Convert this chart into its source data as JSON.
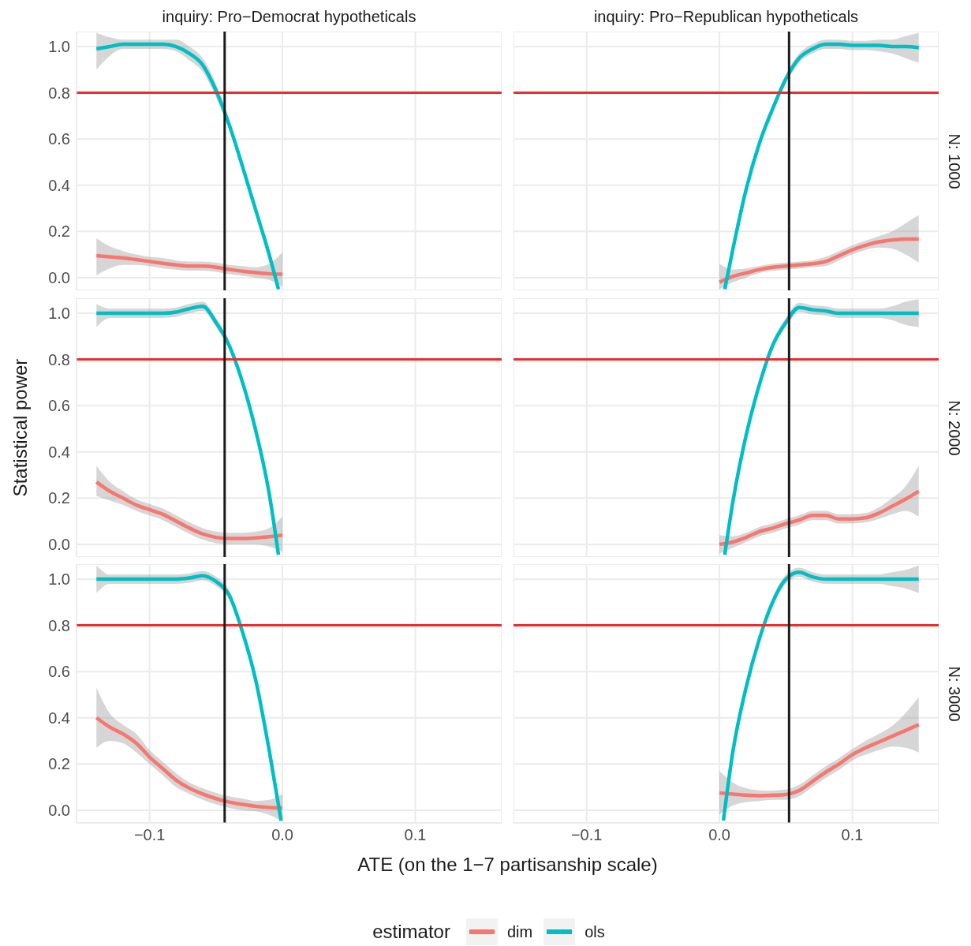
{
  "chart_data": [
    {
      "type": "line",
      "title": "inquiry: Pro−Democrat hypotheticals",
      "x": [
        -0.14,
        -0.13,
        -0.12,
        -0.11,
        -0.1,
        -0.09,
        -0.08,
        -0.07,
        -0.06,
        -0.05,
        -0.04,
        -0.03,
        -0.02,
        -0.01,
        0.0
      ],
      "xlim": [
        -0.155,
        0.165
      ],
      "ylim": [
        -0.055,
        1.065
      ],
      "xticks": [
        {
          "value": -0.1,
          "label": null
        },
        {
          "value": 0,
          "label": null
        },
        {
          "value": 0.1,
          "label": null
        }
      ],
      "yticks": [
        {
          "value": 0,
          "label": "0.0"
        },
        {
          "value": 0.2,
          "label": "0.2"
        },
        {
          "value": 0.4,
          "label": "0.4"
        },
        {
          "value": 0.6,
          "label": "0.6"
        },
        {
          "value": 0.8,
          "label": "0.8"
        },
        {
          "value": 1,
          "label": "1.0"
        }
      ],
      "grid": true,
      "tick_labels": "y",
      "ref_lines": [
        {
          "axis": "y",
          "value": 0.8,
          "color": "#ee2c2c"
        },
        {
          "axis": "x",
          "value": -0.0435,
          "color": "#1a1a1a"
        }
      ],
      "series": [
        {
          "color": "#f8766d",
          "values": [
            0.095,
            0.09,
            0.085,
            0.078,
            0.07,
            0.062,
            0.055,
            0.05,
            0.05,
            0.045,
            0.035,
            0.028,
            0.022,
            0.017,
            0.015
          ],
          "lower": [
            0.01,
            0.04,
            0.055,
            0.055,
            0.05,
            0.04,
            0.035,
            0.03,
            0.03,
            0.025,
            0.015,
            0.008,
            0.0,
            -0.01,
            -0.04
          ],
          "upper": [
            0.17,
            0.135,
            0.115,
            0.1,
            0.09,
            0.085,
            0.075,
            0.07,
            0.07,
            0.065,
            0.055,
            0.05,
            0.045,
            0.06,
            0.11
          ]
        },
        {
          "color": "#00bfc4",
          "x": [
            -0.14,
            -0.13,
            -0.12,
            -0.11,
            -0.1,
            -0.09,
            -0.08,
            -0.07,
            -0.06,
            -0.05,
            -0.04,
            -0.03,
            -0.02,
            -0.01,
            -0.003
          ],
          "values": [
            0.99,
            1.0,
            1.01,
            1.01,
            1.01,
            1.01,
            1.0,
            0.97,
            0.92,
            0.81,
            0.66,
            0.48,
            0.29,
            0.1,
            -0.05
          ],
          "lower": [
            0.9,
            0.96,
            0.99,
            0.99,
            0.99,
            0.99,
            0.98,
            0.94,
            0.89,
            0.78,
            0.64,
            0.46,
            0.27,
            0.08,
            -0.05
          ],
          "upper": [
            1.06,
            1.04,
            1.03,
            1.03,
            1.03,
            1.03,
            1.03,
            1.0,
            0.95,
            0.84,
            0.68,
            0.5,
            0.31,
            0.12,
            -0.05
          ]
        }
      ]
    },
    {
      "type": "line",
      "title": "inquiry: Pro−Republican hypotheticals",
      "y2label": "N: 1000",
      "x": [
        0.0,
        0.01,
        0.02,
        0.03,
        0.04,
        0.05,
        0.06,
        0.07,
        0.08,
        0.09,
        0.1,
        0.11,
        0.12,
        0.13,
        0.14,
        0.15
      ],
      "xlim": [
        -0.155,
        0.165
      ],
      "ylim": [
        -0.055,
        1.065
      ],
      "xticks": [
        {
          "value": -0.1,
          "label": null
        },
        {
          "value": 0,
          "label": null
        },
        {
          "value": 0.1,
          "label": null
        }
      ],
      "yticks": [
        {
          "value": 0,
          "label": null
        },
        {
          "value": 0.2,
          "label": null
        },
        {
          "value": 0.4,
          "label": null
        },
        {
          "value": 0.6,
          "label": null
        },
        {
          "value": 0.8,
          "label": null
        },
        {
          "value": 1,
          "label": null
        }
      ],
      "grid": true,
      "tick_labels": false,
      "ref_lines": [
        {
          "axis": "y",
          "value": 0.8,
          "color": "#ee2c2c"
        },
        {
          "axis": "x",
          "value": 0.0524,
          "color": "#1a1a1a"
        }
      ],
      "series": [
        {
          "color": "#f8766d",
          "values": [
            -0.02,
            0.005,
            0.02,
            0.035,
            0.045,
            0.05,
            0.055,
            0.06,
            0.07,
            0.095,
            0.12,
            0.14,
            0.155,
            0.163,
            0.167,
            0.167
          ],
          "lower": [
            -0.05,
            -0.02,
            0.0,
            0.02,
            0.03,
            0.035,
            0.04,
            0.045,
            0.05,
            0.075,
            0.1,
            0.12,
            0.13,
            0.125,
            0.1,
            0.065
          ],
          "upper": [
            0.06,
            0.035,
            0.04,
            0.05,
            0.06,
            0.065,
            0.07,
            0.075,
            0.09,
            0.115,
            0.14,
            0.16,
            0.18,
            0.2,
            0.235,
            0.27
          ]
        },
        {
          "color": "#00bfc4",
          "x": [
            0.004,
            0.01,
            0.02,
            0.03,
            0.04,
            0.05,
            0.06,
            0.07,
            0.08,
            0.09,
            0.1,
            0.11,
            0.12,
            0.13,
            0.14,
            0.15
          ],
          "values": [
            -0.05,
            0.12,
            0.38,
            0.58,
            0.73,
            0.86,
            0.95,
            0.99,
            1.01,
            1.01,
            1.005,
            1.005,
            1.005,
            1.0,
            1.0,
            0.995
          ],
          "lower": [
            -0.05,
            0.1,
            0.36,
            0.56,
            0.71,
            0.84,
            0.93,
            0.97,
            0.99,
            0.99,
            0.985,
            0.985,
            0.98,
            0.97,
            0.95,
            0.93
          ],
          "upper": [
            -0.05,
            0.14,
            0.4,
            0.6,
            0.75,
            0.88,
            0.97,
            1.01,
            1.03,
            1.03,
            1.025,
            1.025,
            1.03,
            1.03,
            1.045,
            1.06
          ]
        }
      ]
    },
    {
      "type": "line",
      "ylabel": "Statistical power",
      "x": [
        -0.14,
        -0.13,
        -0.12,
        -0.11,
        -0.1,
        -0.09,
        -0.08,
        -0.07,
        -0.06,
        -0.05,
        -0.04,
        -0.03,
        -0.02,
        -0.01,
        0.0
      ],
      "xlim": [
        -0.155,
        0.165
      ],
      "ylim": [
        -0.055,
        1.065
      ],
      "xticks": [
        {
          "value": -0.1,
          "label": null
        },
        {
          "value": 0,
          "label": null
        },
        {
          "value": 0.1,
          "label": null
        }
      ],
      "yticks": [
        {
          "value": 0,
          "label": "0.0"
        },
        {
          "value": 0.2,
          "label": "0.2"
        },
        {
          "value": 0.4,
          "label": "0.4"
        },
        {
          "value": 0.6,
          "label": "0.6"
        },
        {
          "value": 0.8,
          "label": "0.8"
        },
        {
          "value": 1,
          "label": "1.0"
        }
      ],
      "grid": true,
      "tick_labels": "y",
      "ref_lines": [
        {
          "axis": "y",
          "value": 0.8,
          "color": "#ee2c2c"
        },
        {
          "axis": "x",
          "value": -0.0435,
          "color": "#1a1a1a"
        }
      ],
      "series": [
        {
          "color": "#f8766d",
          "values": [
            0.27,
            0.23,
            0.2,
            0.17,
            0.15,
            0.13,
            0.1,
            0.07,
            0.045,
            0.03,
            0.025,
            0.025,
            0.028,
            0.033,
            0.04
          ],
          "lower": [
            0.21,
            0.19,
            0.17,
            0.145,
            0.125,
            0.105,
            0.075,
            0.045,
            0.02,
            0.005,
            0.0,
            0.0,
            0.0,
            -0.01,
            -0.03
          ],
          "upper": [
            0.34,
            0.27,
            0.23,
            0.195,
            0.175,
            0.155,
            0.125,
            0.095,
            0.07,
            0.055,
            0.05,
            0.05,
            0.055,
            0.07,
            0.12
          ]
        },
        {
          "color": "#00bfc4",
          "x": [
            -0.14,
            -0.13,
            -0.12,
            -0.11,
            -0.1,
            -0.09,
            -0.08,
            -0.07,
            -0.06,
            -0.05,
            -0.04,
            -0.03,
            -0.02,
            -0.01,
            -0.003
          ],
          "values": [
            1.0,
            1.0,
            1.0,
            1.0,
            1.0,
            1.0,
            1.005,
            1.02,
            1.03,
            0.96,
            0.86,
            0.7,
            0.49,
            0.22,
            -0.045
          ],
          "lower": [
            0.94,
            0.98,
            0.98,
            0.98,
            0.98,
            0.98,
            0.985,
            1.0,
            1.01,
            0.94,
            0.84,
            0.68,
            0.47,
            0.2,
            -0.045
          ],
          "upper": [
            1.04,
            1.02,
            1.02,
            1.02,
            1.02,
            1.02,
            1.025,
            1.04,
            1.05,
            0.98,
            0.88,
            0.72,
            0.51,
            0.24,
            -0.045
          ]
        }
      ]
    },
    {
      "type": "line",
      "y2label": "N: 2000",
      "x": [
        0.0,
        0.01,
        0.02,
        0.03,
        0.04,
        0.05,
        0.06,
        0.07,
        0.08,
        0.09,
        0.1,
        0.11,
        0.12,
        0.13,
        0.14,
        0.15
      ],
      "xlim": [
        -0.155,
        0.165
      ],
      "ylim": [
        -0.055,
        1.065
      ],
      "xticks": [
        {
          "value": -0.1,
          "label": null
        },
        {
          "value": 0,
          "label": null
        },
        {
          "value": 0.1,
          "label": null
        }
      ],
      "yticks": [
        {
          "value": 0,
          "label": null
        },
        {
          "value": 0.2,
          "label": null
        },
        {
          "value": 0.4,
          "label": null
        },
        {
          "value": 0.6,
          "label": null
        },
        {
          "value": 0.8,
          "label": null
        },
        {
          "value": 1,
          "label": null
        }
      ],
      "grid": true,
      "tick_labels": false,
      "ref_lines": [
        {
          "axis": "y",
          "value": 0.8,
          "color": "#ee2c2c"
        },
        {
          "axis": "x",
          "value": 0.0524,
          "color": "#1a1a1a"
        }
      ],
      "series": [
        {
          "color": "#f8766d",
          "values": [
            0.0,
            0.01,
            0.03,
            0.055,
            0.07,
            0.09,
            0.105,
            0.125,
            0.125,
            0.11,
            0.11,
            0.115,
            0.135,
            0.165,
            0.195,
            0.23
          ],
          "lower": [
            -0.04,
            -0.015,
            0.01,
            0.035,
            0.05,
            0.07,
            0.085,
            0.105,
            0.105,
            0.09,
            0.09,
            0.095,
            0.11,
            0.13,
            0.145,
            0.12
          ],
          "upper": [
            0.04,
            0.035,
            0.05,
            0.075,
            0.09,
            0.11,
            0.125,
            0.145,
            0.145,
            0.13,
            0.13,
            0.135,
            0.16,
            0.2,
            0.25,
            0.34
          ]
        },
        {
          "color": "#00bfc4",
          "x": [
            0.004,
            0.01,
            0.02,
            0.03,
            0.04,
            0.05,
            0.06,
            0.07,
            0.08,
            0.09,
            0.1,
            0.11,
            0.12,
            0.13,
            0.14,
            0.15
          ],
          "values": [
            -0.045,
            0.18,
            0.47,
            0.69,
            0.86,
            0.96,
            1.025,
            1.015,
            1.01,
            1.0,
            1.0,
            1.0,
            1.0,
            1.0,
            1.0,
            1.0
          ],
          "lower": [
            -0.045,
            0.16,
            0.45,
            0.67,
            0.84,
            0.94,
            1.005,
            0.995,
            0.99,
            0.98,
            0.98,
            0.98,
            0.98,
            0.97,
            0.95,
            0.94
          ],
          "upper": [
            -0.045,
            0.2,
            0.49,
            0.71,
            0.88,
            0.98,
            1.045,
            1.035,
            1.03,
            1.02,
            1.02,
            1.02,
            1.02,
            1.03,
            1.05,
            1.06
          ]
        }
      ]
    },
    {
      "type": "line",
      "xlabel": "ATE (on the 1−7 partisanship scale)",
      "x": [
        -0.14,
        -0.13,
        -0.12,
        -0.11,
        -0.1,
        -0.09,
        -0.08,
        -0.07,
        -0.06,
        -0.05,
        -0.04,
        -0.03,
        -0.02,
        -0.01,
        0.0
      ],
      "xlim": [
        -0.155,
        0.165
      ],
      "ylim": [
        -0.055,
        1.065
      ],
      "xticks": [
        {
          "value": -0.1,
          "label": "−0.1"
        },
        {
          "value": 0,
          "label": "0.0"
        },
        {
          "value": 0.1,
          "label": "0.1"
        }
      ],
      "yticks": [
        {
          "value": 0,
          "label": "0.0"
        },
        {
          "value": 0.2,
          "label": "0.2"
        },
        {
          "value": 0.4,
          "label": "0.4"
        },
        {
          "value": 0.6,
          "label": "0.6"
        },
        {
          "value": 0.8,
          "label": "0.8"
        },
        {
          "value": 1,
          "label": "1.0"
        }
      ],
      "grid": true,
      "ref_lines": [
        {
          "axis": "y",
          "value": 0.8,
          "color": "#ee2c2c"
        },
        {
          "axis": "x",
          "value": -0.0435,
          "color": "#1a1a1a"
        }
      ],
      "series": [
        {
          "color": "#f8766d",
          "values": [
            0.4,
            0.36,
            0.33,
            0.29,
            0.23,
            0.18,
            0.13,
            0.095,
            0.07,
            0.05,
            0.035,
            0.025,
            0.017,
            0.012,
            0.01
          ],
          "lower": [
            0.27,
            0.3,
            0.29,
            0.25,
            0.2,
            0.15,
            0.1,
            0.07,
            0.045,
            0.025,
            0.01,
            0.0,
            -0.005,
            -0.02,
            -0.05
          ],
          "upper": [
            0.53,
            0.42,
            0.37,
            0.33,
            0.26,
            0.21,
            0.16,
            0.12,
            0.095,
            0.075,
            0.06,
            0.05,
            0.04,
            0.045,
            0.07
          ]
        },
        {
          "color": "#00bfc4",
          "x": [
            -0.14,
            -0.13,
            -0.12,
            -0.11,
            -0.1,
            -0.09,
            -0.08,
            -0.07,
            -0.06,
            -0.05,
            -0.04,
            -0.03,
            -0.02,
            -0.01,
            -0.001
          ],
          "values": [
            1.0,
            1.0,
            1.0,
            1.0,
            1.0,
            1.0,
            1.0,
            1.005,
            1.015,
            0.99,
            0.93,
            0.77,
            0.56,
            0.26,
            -0.045
          ],
          "lower": [
            0.94,
            0.98,
            0.98,
            0.98,
            0.98,
            0.98,
            0.98,
            0.985,
            0.995,
            0.97,
            0.91,
            0.75,
            0.54,
            0.24,
            -0.045
          ],
          "upper": [
            1.06,
            1.02,
            1.02,
            1.02,
            1.02,
            1.02,
            1.02,
            1.025,
            1.035,
            1.01,
            0.95,
            0.79,
            0.58,
            0.28,
            -0.045
          ]
        }
      ]
    },
    {
      "type": "line",
      "y2label": "N: 3000",
      "legend": "bottom",
      "legend_title": "estimator",
      "x": [
        0.0,
        0.01,
        0.02,
        0.03,
        0.04,
        0.05,
        0.06,
        0.07,
        0.08,
        0.09,
        0.1,
        0.11,
        0.12,
        0.13,
        0.14,
        0.15
      ],
      "xlim": [
        -0.155,
        0.165
      ],
      "ylim": [
        -0.055,
        1.065
      ],
      "xticks": [
        {
          "value": -0.1,
          "label": "−0.1"
        },
        {
          "value": 0,
          "label": "0.0"
        },
        {
          "value": 0.1,
          "label": "0.1"
        }
      ],
      "yticks": [
        {
          "value": 0,
          "label": null
        },
        {
          "value": 0.2,
          "label": null
        },
        {
          "value": 0.4,
          "label": null
        },
        {
          "value": 0.6,
          "label": null
        },
        {
          "value": 0.8,
          "label": null
        },
        {
          "value": 1,
          "label": null
        }
      ],
      "grid": true,
      "tick_labels": "x",
      "ref_lines": [
        {
          "axis": "y",
          "value": 0.8,
          "color": "#ee2c2c"
        },
        {
          "axis": "x",
          "value": 0.0524,
          "color": "#1a1a1a"
        }
      ],
      "series": [
        {
          "name": "dim",
          "color": "#f8766d",
          "values": [
            0.075,
            0.07,
            0.065,
            0.063,
            0.065,
            0.068,
            0.085,
            0.125,
            0.165,
            0.2,
            0.24,
            0.27,
            0.295,
            0.32,
            0.345,
            0.37
          ],
          "lower": [
            -0.02,
            0.02,
            0.035,
            0.04,
            0.045,
            0.045,
            0.06,
            0.1,
            0.14,
            0.175,
            0.215,
            0.24,
            0.26,
            0.275,
            0.27,
            0.25
          ],
          "upper": [
            0.17,
            0.12,
            0.095,
            0.086,
            0.085,
            0.09,
            0.11,
            0.15,
            0.19,
            0.225,
            0.265,
            0.3,
            0.33,
            0.365,
            0.42,
            0.49
          ]
        },
        {
          "name": "ols",
          "color": "#00bfc4",
          "x": [
            0.003,
            0.01,
            0.02,
            0.03,
            0.04,
            0.05,
            0.06,
            0.07,
            0.08,
            0.09,
            0.1,
            0.11,
            0.12,
            0.13,
            0.14,
            0.15
          ],
          "values": [
            -0.045,
            0.25,
            0.53,
            0.74,
            0.9,
            1.0,
            1.03,
            1.01,
            1.0,
            1.0,
            1.0,
            1.0,
            1.0,
            1.0,
            1.0,
            1.0
          ],
          "lower": [
            -0.045,
            0.23,
            0.51,
            0.72,
            0.88,
            0.98,
            1.01,
            0.99,
            0.98,
            0.98,
            0.98,
            0.98,
            0.98,
            0.97,
            0.96,
            0.94
          ],
          "upper": [
            -0.045,
            0.27,
            0.55,
            0.76,
            0.92,
            1.02,
            1.05,
            1.03,
            1.02,
            1.02,
            1.02,
            1.02,
            1.02,
            1.03,
            1.04,
            1.06
          ]
        }
      ]
    }
  ]
}
